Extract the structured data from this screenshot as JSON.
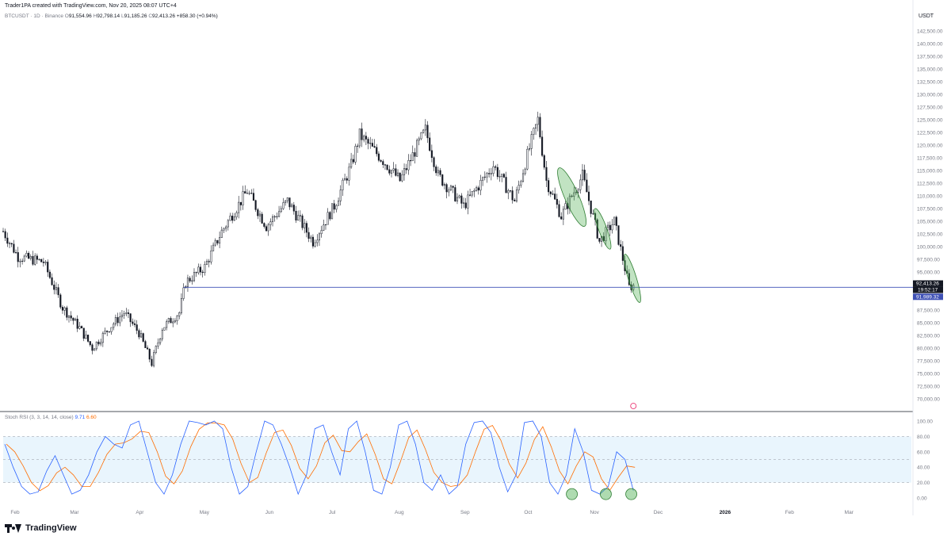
{
  "header": {
    "creator": "Trader1PA created with TradingView.com, Nov 20, 2025 08:07 UTC+4"
  },
  "legend": {
    "symbol": "BTCUSDT · 1D · Binance",
    "open_label": "O",
    "open": "91,554.96",
    "high_label": "H",
    "high": "92,798.14",
    "low_label": "L",
    "low": "91,185.26",
    "close_label": "C",
    "close": "92,413.26",
    "change": "+858.30 (+0.94%)"
  },
  "currency": "USDT",
  "price_badges": {
    "last_price": "92,413.26",
    "countdown": "19:52:17",
    "line_price": "91,989.32"
  },
  "indicator": {
    "name": "Stoch RSI (3, 3, 14, 14, close)",
    "k_value": "9.71",
    "d_value": "6.60"
  },
  "brand": "TradingView",
  "colors": {
    "up": "#26a69a",
    "candle": "#131722",
    "hline": "#3f51b5",
    "ellipse_fill": "#4caf50",
    "k_line": "#2962ff",
    "d_line": "#ff6d00",
    "band_fill": "#e3f2fd"
  },
  "chart_data": [
    {
      "type": "candlestick",
      "title": "BTCUSDT · 1D · Binance",
      "y_axis_ticks": [
        "142,500.00",
        "140,000.00",
        "137,500.00",
        "135,000.00",
        "132,500.00",
        "130,000.00",
        "127,500.00",
        "125,000.00",
        "122,500.00",
        "120,000.00",
        "117,500.00",
        "115,000.00",
        "112,500.00",
        "110,000.00",
        "107,500.00",
        "105,000.00",
        "102,500.00",
        "100,000.00",
        "97,500.00",
        "95,000.00",
        "87,500.00",
        "85,000.00",
        "82,500.00",
        "80,000.00",
        "77,500.00",
        "75,000.00",
        "72,500.00",
        "70,000.00"
      ],
      "ylim": [
        70000,
        142500
      ],
      "x_axis_ticks": [
        "Feb",
        "Mar",
        "Apr",
        "May",
        "Jun",
        "Jul",
        "Aug",
        "Sep",
        "Oct",
        "Nov",
        "Dec",
        "2026",
        "Feb",
        "Mar"
      ],
      "x_range": [
        "2025-01-27",
        "2026-03-31"
      ],
      "series_close_approx": [
        {
          "date": "2025-01-27",
          "close": 103000
        },
        {
          "date": "2025-02-03",
          "close": 98000
        },
        {
          "date": "2025-02-15",
          "close": 97000
        },
        {
          "date": "2025-02-24",
          "close": 88000
        },
        {
          "date": "2025-03-04",
          "close": 84000
        },
        {
          "date": "2025-03-10",
          "close": 80000
        },
        {
          "date": "2025-03-18",
          "close": 84000
        },
        {
          "date": "2025-03-25",
          "close": 87000
        },
        {
          "date": "2025-04-01",
          "close": 83000
        },
        {
          "date": "2025-04-07",
          "close": 77000
        },
        {
          "date": "2025-04-12",
          "close": 84000
        },
        {
          "date": "2025-04-20",
          "close": 87000
        },
        {
          "date": "2025-04-23",
          "close": 93000
        },
        {
          "date": "2025-05-02",
          "close": 96000
        },
        {
          "date": "2025-05-10",
          "close": 103000
        },
        {
          "date": "2025-05-22",
          "close": 111000
        },
        {
          "date": "2025-05-31",
          "close": 104000
        },
        {
          "date": "2025-06-10",
          "close": 109000
        },
        {
          "date": "2025-06-22",
          "close": 101000
        },
        {
          "date": "2025-07-02",
          "close": 108000
        },
        {
          "date": "2025-07-10",
          "close": 116000
        },
        {
          "date": "2025-07-14",
          "close": 122000
        },
        {
          "date": "2025-07-25",
          "close": 117000
        },
        {
          "date": "2025-08-02",
          "close": 113000
        },
        {
          "date": "2025-08-14",
          "close": 123000
        },
        {
          "date": "2025-08-20",
          "close": 114000
        },
        {
          "date": "2025-09-01",
          "close": 108000
        },
        {
          "date": "2025-09-15",
          "close": 116000
        },
        {
          "date": "2025-09-25",
          "close": 109000
        },
        {
          "date": "2025-10-01",
          "close": 118000
        },
        {
          "date": "2025-10-06",
          "close": 125000
        },
        {
          "date": "2025-10-10",
          "close": 113000
        },
        {
          "date": "2025-10-17",
          "close": 106000
        },
        {
          "date": "2025-10-27",
          "close": 114000
        },
        {
          "date": "2025-11-04",
          "close": 101000
        },
        {
          "date": "2025-11-11",
          "close": 105000
        },
        {
          "date": "2025-11-18",
          "close": 92000
        },
        {
          "date": "2025-11-20",
          "close": 92413
        }
      ],
      "annotations": {
        "horizontal_line_price": 91989.32,
        "ellipses": [
          {
            "from": "2025-10-16",
            "to": "2025-10-28",
            "price_low": 104000,
            "price_high": 115500
          },
          {
            "from": "2025-11-02",
            "to": "2025-11-09",
            "price_low": 99500,
            "price_high": 107500
          },
          {
            "from": "2025-11-16",
            "to": "2025-11-23",
            "price_low": 89000,
            "price_high": 98500
          }
        ]
      }
    },
    {
      "type": "line",
      "title": "Stoch RSI (3, 3, 14, 14, close)",
      "y_axis_ticks": [
        "100.00",
        "80.00",
        "60.00",
        "40.00",
        "20.00",
        "0.00"
      ],
      "ylim": [
        0,
        100
      ],
      "band": [
        20,
        80
      ],
      "series": [
        {
          "name": "K",
          "last": 9.71
        },
        {
          "name": "D",
          "last": 6.6
        }
      ],
      "k_values_approx": [
        70,
        40,
        15,
        5,
        8,
        35,
        55,
        30,
        5,
        10,
        30,
        60,
        80,
        70,
        65,
        95,
        100,
        60,
        20,
        5,
        30,
        70,
        100,
        98,
        95,
        100,
        90,
        40,
        5,
        15,
        60,
        100,
        95,
        70,
        40,
        5,
        30,
        90,
        95,
        60,
        30,
        90,
        100,
        60,
        10,
        5,
        40,
        95,
        100,
        70,
        20,
        10,
        30,
        5,
        15,
        70,
        98,
        100,
        85,
        40,
        8,
        30,
        98,
        100,
        80,
        20,
        5,
        30,
        90,
        60,
        10,
        5,
        15,
        60,
        50,
        9.71
      ],
      "circles_dates": [
        "2025-10-22",
        "2025-11-07",
        "2025-11-19"
      ]
    }
  ]
}
